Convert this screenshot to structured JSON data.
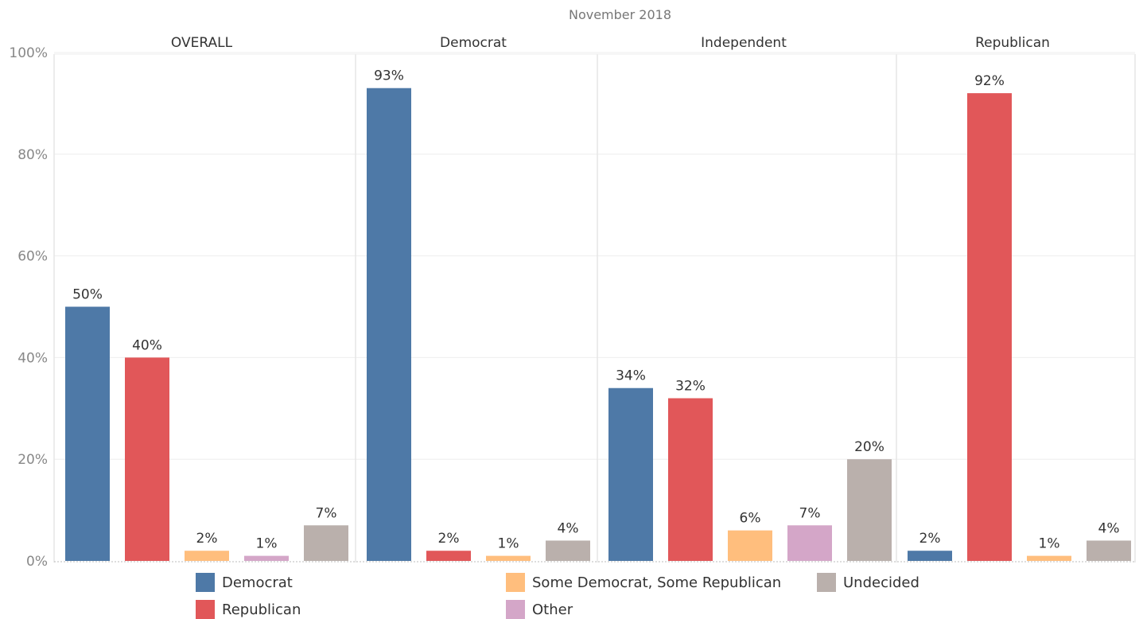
{
  "chart_data": {
    "type": "bar",
    "title": "November 2018",
    "panels": [
      "OVERALL",
      "Democrat",
      "Independent",
      "Republican"
    ],
    "categories": [
      "Democrat",
      "Republican",
      "Some Democrat, Some Republican",
      "Other",
      "Undecided"
    ],
    "colors": {
      "Democrat": "#4e79a7",
      "Republican": "#e15759",
      "Some Democrat, Some Republican": "#ffbe7d",
      "Other": "#d4a6c8",
      "Undecided": "#bab0ac"
    },
    "values": [
      [
        50,
        40,
        2,
        1,
        7
      ],
      [
        93,
        2,
        1,
        null,
        4
      ],
      [
        34,
        32,
        6,
        7,
        20
      ],
      [
        2,
        92,
        1,
        null,
        4
      ]
    ],
    "data_labels": [
      [
        "50%",
        "40%",
        "2%",
        "1%",
        "7%"
      ],
      [
        "93%",
        "2%",
        "1%",
        null,
        "4%"
      ],
      [
        "34%",
        "32%",
        "6%",
        "7%",
        "20%"
      ],
      [
        "2%",
        "92%",
        "1%",
        null,
        "4%"
      ]
    ],
    "ylim": [
      0,
      100
    ],
    "yticks": [
      0,
      20,
      40,
      60,
      80,
      100
    ],
    "ytick_labels": [
      "0%",
      "20%",
      "40%",
      "60%",
      "80%",
      "100%"
    ],
    "grid": true,
    "legend_position": "bottom",
    "legend": [
      [
        "Democrat",
        "Republican"
      ],
      [
        "Some Democrat, Some Republican",
        "Other"
      ],
      [
        "Undecided"
      ]
    ]
  }
}
